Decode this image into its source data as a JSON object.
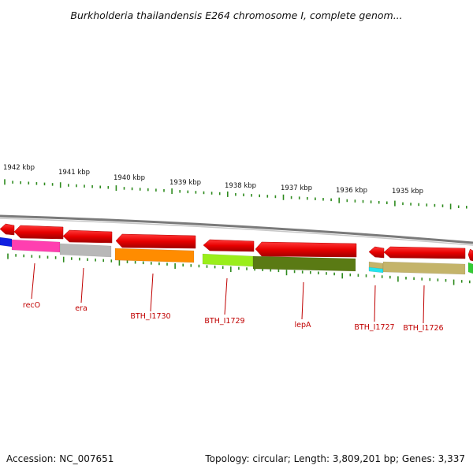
{
  "title": "Burkholderia thailandensis E264 chromosome I, complete genom...",
  "accession": "Accession: NC_007651",
  "summary": "Topology: circular; Length: 3,809,201 bp; Genes: 3,337",
  "colors": {
    "tick": "#2e8b1e",
    "backbone": "#8a8a8a",
    "label": "#c00000",
    "forward_gene": "#e00000"
  },
  "ticks": [
    {
      "label": "1942 kbp"
    },
    {
      "label": "1941 kbp"
    },
    {
      "label": "1940 kbp"
    },
    {
      "label": "1939 kbp"
    },
    {
      "label": "1938 kbp"
    },
    {
      "label": "1937 kbp"
    },
    {
      "label": "1936 kbp"
    },
    {
      "label": "1935 kbp"
    }
  ],
  "gene_labels": [
    {
      "text": "recO"
    },
    {
      "text": "era"
    },
    {
      "text": "BTH_I1730"
    },
    {
      "text": "BTH_I1729"
    },
    {
      "text": "lepA"
    },
    {
      "text": "BTH_I1727"
    },
    {
      "text": "BTH_I1726"
    }
  ],
  "feature_colors": {
    "recO": "#ff3fb0",
    "era": "#b8b8b8",
    "BTH_I1730": "#ff8c00",
    "BTH_I1729": "#9aee1a",
    "lepA": "#5a7a14",
    "BTH_I1727": "#22e5ee",
    "BTH_I1726": "#c4b46a",
    "left_edge": "#1020e0",
    "right_edge": "#33cc33"
  }
}
